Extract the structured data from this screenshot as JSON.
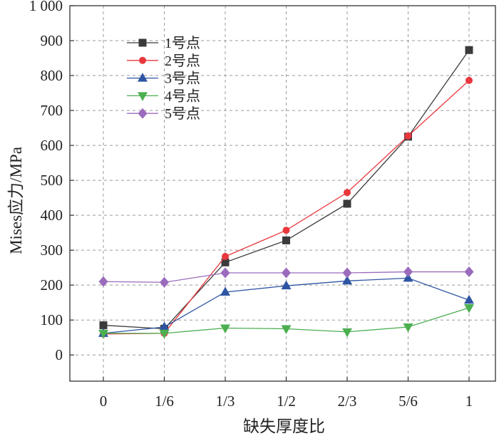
{
  "chart_data": {
    "type": "line",
    "title": "",
    "xlabel": "缺失厚度比",
    "ylabel": "Mises应力/MPa",
    "categories": [
      "0",
      "1/6",
      "1/3",
      "1/2",
      "2/3",
      "5/6",
      "1"
    ],
    "ylim": [
      -75,
      1000
    ],
    "yticks": [
      0,
      100,
      200,
      300,
      400,
      500,
      600,
      700,
      800,
      900,
      1000
    ],
    "ytick_labels": [
      "0",
      "100",
      "200",
      "300",
      "400",
      "500",
      "600",
      "700",
      "800",
      "900",
      "1 000"
    ],
    "grid": true,
    "legend_position": "top-left",
    "series": [
      {
        "name": "1号点",
        "color": "#3b3b3b",
        "marker": "square",
        "values": [
          85,
          75,
          265,
          328,
          433,
          625,
          873
        ]
      },
      {
        "name": "2号点",
        "color": "#e8383d",
        "marker": "circle",
        "values": [
          60,
          62,
          282,
          357,
          465,
          627,
          786
        ]
      },
      {
        "name": "3号点",
        "color": "#2e55a3",
        "marker": "triangle-up",
        "values": [
          62,
          80,
          180,
          198,
          212,
          220,
          157
        ]
      },
      {
        "name": "4号点",
        "color": "#4caf50",
        "marker": "triangle-down",
        "values": [
          62,
          62,
          77,
          75,
          66,
          80,
          135
        ]
      },
      {
        "name": "5号点",
        "color": "#9b6bbd",
        "marker": "diamond",
        "values": [
          210,
          208,
          235,
          235,
          235,
          238,
          238
        ]
      }
    ]
  }
}
